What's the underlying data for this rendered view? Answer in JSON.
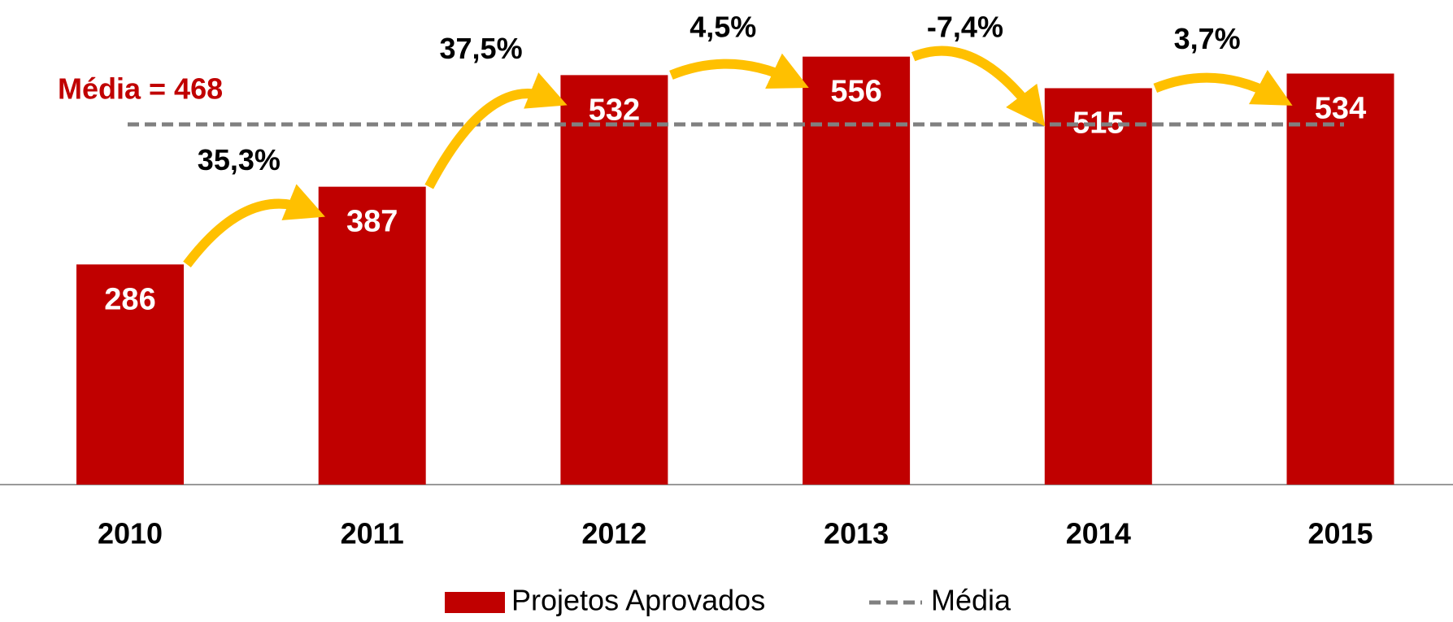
{
  "chart_data": {
    "type": "bar",
    "categories": [
      "2010",
      "2011",
      "2012",
      "2013",
      "2014",
      "2015"
    ],
    "series": [
      {
        "name": "Projetos Aprovados",
        "color": "#c00000",
        "values": [
          286,
          387,
          532,
          556,
          515,
          534
        ]
      }
    ],
    "mean": {
      "name": "Média",
      "value": 468,
      "label": "Média = 468",
      "color": "#808080"
    },
    "growth": {
      "color": "#ffc000",
      "values": [
        35.3,
        37.5,
        4.5,
        -7.4,
        3.7
      ],
      "value_labels": [
        "35,3%",
        "37,5%",
        "4,5%",
        "-7,4%",
        "3,7%"
      ]
    },
    "ylim": [
      0,
      600
    ],
    "legend": "bottom"
  }
}
